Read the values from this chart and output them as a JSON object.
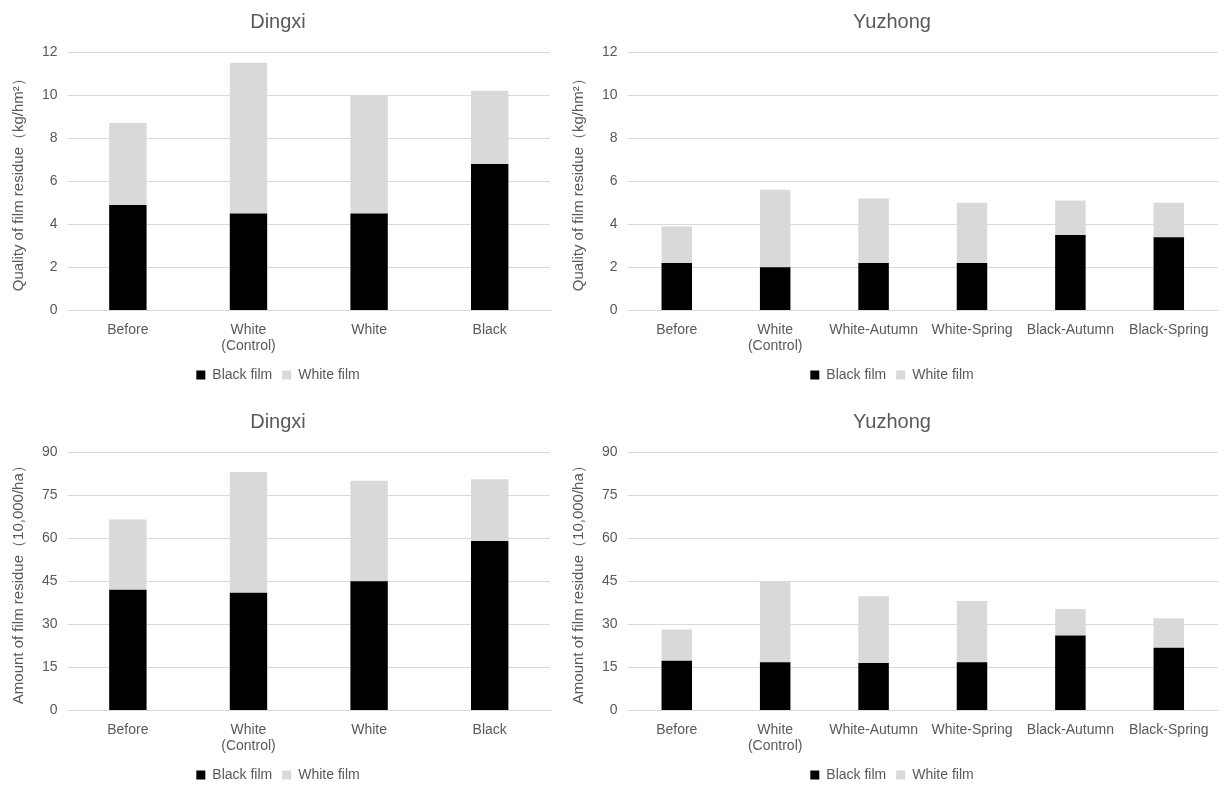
{
  "chart_data": [
    {
      "type": "bar",
      "title": "Dingxi",
      "ylabel": "Quality of film residue（kg/hm²）",
      "categories": [
        "Before",
        "White\n(Control)",
        "White",
        "Black"
      ],
      "stacked": true,
      "ylim": [
        0,
        12
      ],
      "yticks": [
        0,
        2,
        4,
        6,
        8,
        10,
        12
      ],
      "grid": "y",
      "legend": "bottom",
      "series": [
        {
          "name": "Black film",
          "color": "#000000",
          "values": [
            4.9,
            4.5,
            4.5,
            6.8
          ]
        },
        {
          "name": "White film",
          "color": "#d9d9d9",
          "values": [
            3.8,
            7.0,
            5.5,
            3.4
          ]
        }
      ]
    },
    {
      "type": "bar",
      "title": "Yuzhong",
      "ylabel": "Quality of film residue（kg/hm²）",
      "categories": [
        "Before",
        "White\n(Control)",
        "White-Autumn",
        "White-Spring",
        "Black-Autumn",
        "Black-Spring"
      ],
      "stacked": true,
      "ylim": [
        0,
        12
      ],
      "yticks": [
        0,
        2,
        4,
        6,
        8,
        10,
        12
      ],
      "grid": "y",
      "legend": "bottom",
      "series": [
        {
          "name": "Black film",
          "color": "#000000",
          "values": [
            2.2,
            2.0,
            2.2,
            2.2,
            3.5,
            3.4
          ]
        },
        {
          "name": "White film",
          "color": "#d9d9d9",
          "values": [
            1.7,
            3.6,
            3.0,
            2.8,
            1.6,
            1.6
          ]
        }
      ]
    },
    {
      "type": "bar",
      "title": "Dingxi",
      "ylabel": "Amount of film residue（10,000/ha）",
      "categories": [
        "Before",
        "White\n(Control)",
        "White",
        "Black"
      ],
      "stacked": true,
      "ylim": [
        0,
        90
      ],
      "yticks": [
        0,
        15,
        30,
        45,
        60,
        75,
        90
      ],
      "grid": "y",
      "legend": "bottom",
      "series": [
        {
          "name": "Black film",
          "color": "#000000",
          "values": [
            42,
            41,
            45,
            59
          ]
        },
        {
          "name": "White film",
          "color": "#d9d9d9",
          "values": [
            24.5,
            42,
            35,
            21.5
          ]
        }
      ]
    },
    {
      "type": "bar",
      "title": "Yuzhong",
      "ylabel": "Amount of film residue（10,000/ha）",
      "categories": [
        "Before",
        "White\n(Control)",
        "White-Autumn",
        "White-Spring",
        "Black-Autumn",
        "Black-Spring"
      ],
      "stacked": true,
      "ylim": [
        0,
        90
      ],
      "yticks": [
        0,
        15,
        30,
        45,
        60,
        75,
        90
      ],
      "grid": "y",
      "legend": "bottom",
      "series": [
        {
          "name": "Black film",
          "color": "#000000",
          "values": [
            17.3,
            16.8,
            16.5,
            16.8,
            26.1,
            21.8
          ]
        },
        {
          "name": "White film",
          "color": "#d9d9d9",
          "values": [
            10.9,
            28.2,
            23.3,
            21.3,
            9.2,
            10.3
          ]
        }
      ]
    }
  ]
}
